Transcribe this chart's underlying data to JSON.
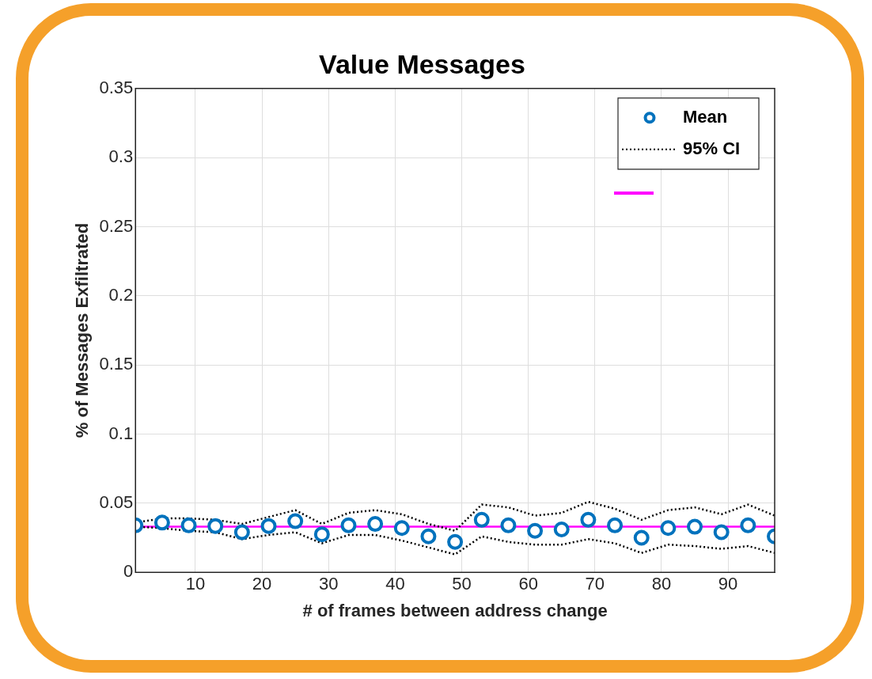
{
  "chart_data": {
    "type": "scatter",
    "title": "Value Messages",
    "xlabel": "# of frames between address change",
    "ylabel": "% of Messages Exfiltrated",
    "x": [
      1,
      5,
      9,
      13,
      17,
      21,
      25,
      29,
      33,
      37,
      41,
      45,
      49,
      53,
      57,
      61,
      65,
      69,
      73,
      77,
      81,
      85,
      89,
      93,
      97
    ],
    "series": [
      {
        "name": "Mean",
        "color": "#0072bd",
        "marker": "circle",
        "values": [
          0.034,
          0.036,
          0.034,
          0.0335,
          0.029,
          0.0335,
          0.037,
          0.0275,
          0.034,
          0.035,
          0.032,
          0.026,
          0.022,
          0.038,
          0.034,
          0.03,
          0.031,
          0.038,
          0.034,
          0.025,
          0.032,
          0.033,
          0.029,
          0.034,
          0.026
        ]
      },
      {
        "name": "95% CI",
        "type": "line",
        "color": "#000000",
        "line_style": "dotted",
        "marker": "none",
        "values": [
          0.036,
          0.039,
          0.039,
          0.038,
          0.035,
          0.04,
          0.045,
          0.035,
          0.043,
          0.045,
          0.042,
          0.035,
          0.03,
          0.049,
          0.047,
          0.041,
          0.043,
          0.051,
          0.046,
          0.038,
          0.045,
          0.047,
          0.042,
          0.049,
          0.041
        ]
      },
      {
        "type": "line",
        "color": "#000000",
        "line_style": "dotted",
        "marker": "none",
        "values": [
          0.033,
          0.032,
          0.03,
          0.029,
          0.024,
          0.027,
          0.029,
          0.021,
          0.027,
          0.027,
          0.023,
          0.018,
          0.013,
          0.026,
          0.022,
          0.02,
          0.02,
          0.024,
          0.021,
          0.014,
          0.02,
          0.019,
          0.017,
          0.019,
          0.014
        ]
      }
    ],
    "ref_lines": [
      {
        "axis": "y",
        "value": 0.033,
        "color": "#ff00ff"
      }
    ],
    "xlim": [
      1,
      97
    ],
    "xticks": [
      10,
      20,
      30,
      40,
      50,
      60,
      70,
      80,
      90
    ],
    "ylim": [
      0,
      0.35
    ],
    "yticks": [
      0,
      0.05,
      0.1,
      0.15,
      0.2,
      0.25,
      0.3,
      0.35
    ],
    "grid": true,
    "legend": "top right"
  }
}
